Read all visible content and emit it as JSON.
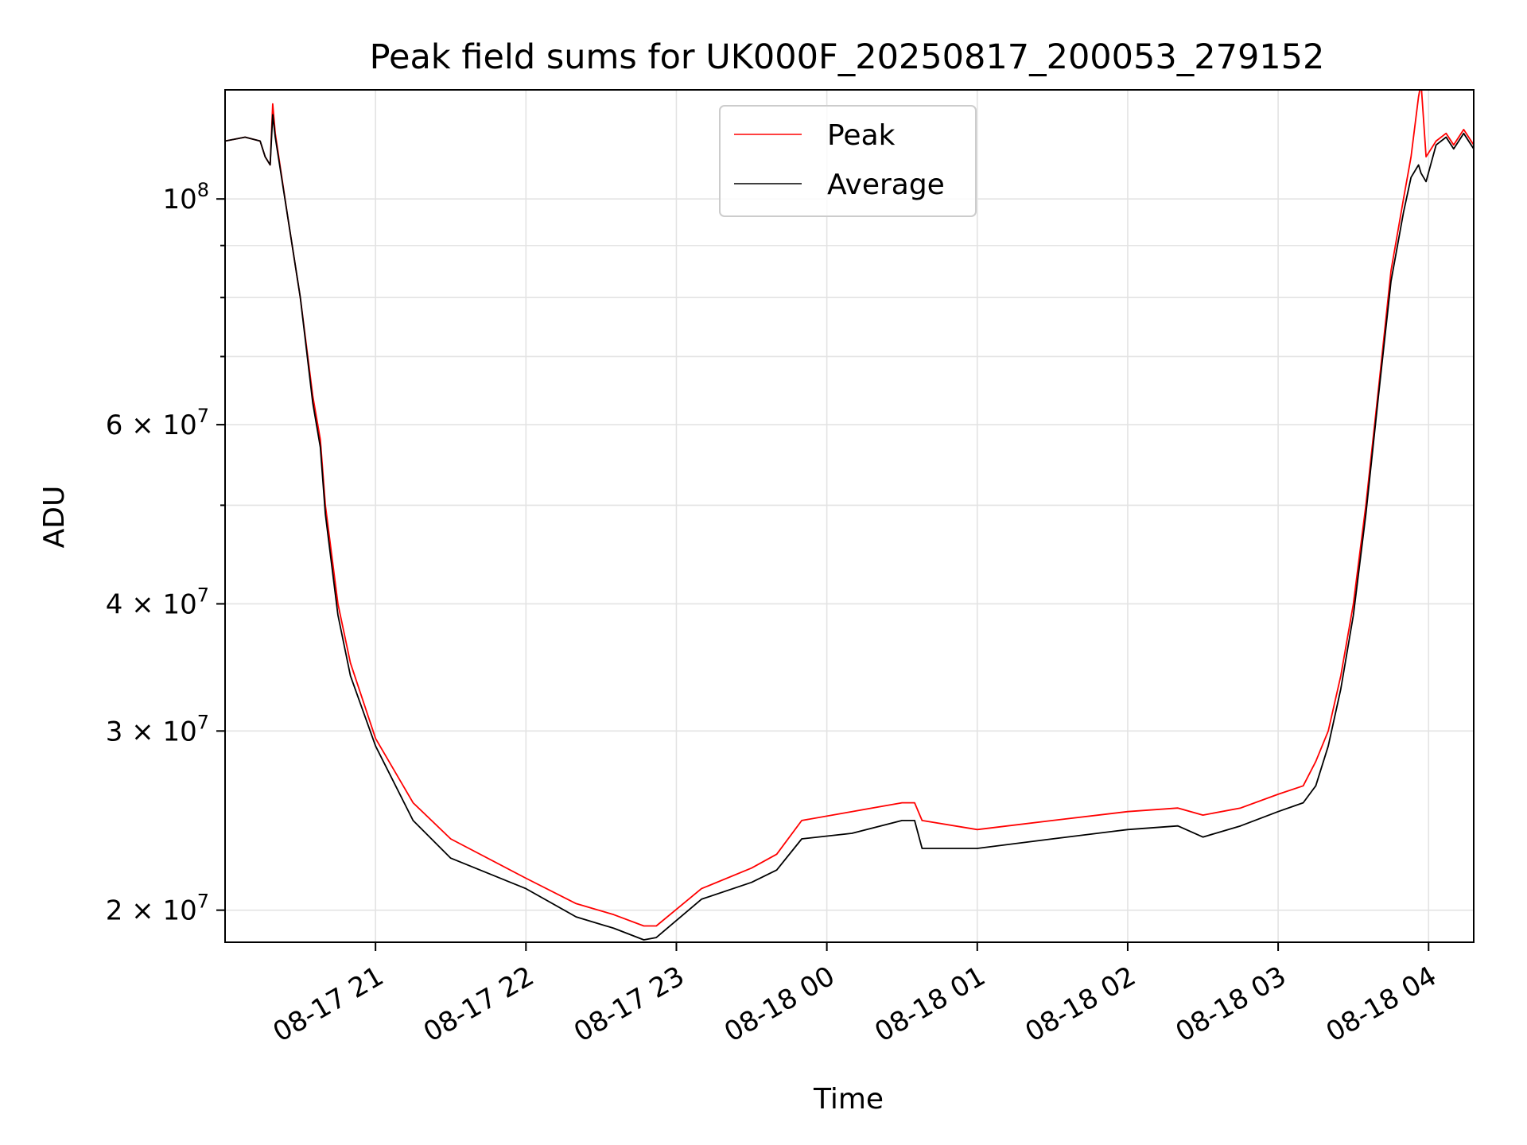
{
  "chart_data": {
    "type": "line",
    "title": "Peak field sums for UK000F_20250817_200053_279152",
    "xlabel": "Time",
    "ylabel": "ADU",
    "x_scale": "time",
    "y_scale": "log",
    "xlim": [
      "2025-08-17 20:00",
      "2025-08-18 04:18"
    ],
    "ylim": [
      18600000,
      128000000
    ],
    "grid": true,
    "legend": {
      "placement": "upper center",
      "entries": [
        "Peak",
        "Average"
      ]
    },
    "x_ticks": [
      "2025-08-17 21:00",
      "2025-08-17 22:00",
      "2025-08-17 23:00",
      "2025-08-18 00:00",
      "2025-08-18 01:00",
      "2025-08-18 02:00",
      "2025-08-18 03:00",
      "2025-08-18 04:00"
    ],
    "x_tick_labels": [
      "08-17 21",
      "08-17 22",
      "08-17 23",
      "08-18 00",
      "08-18 01",
      "08-18 02",
      "08-18 03",
      "08-18 04"
    ],
    "y_ticks": [
      {
        "value": 20000000,
        "mantissa": "2",
        "exponent": "7"
      },
      {
        "value": 30000000,
        "mantissa": "3",
        "exponent": "7"
      },
      {
        "value": 40000000,
        "mantissa": "4",
        "exponent": "7"
      },
      {
        "value": 60000000,
        "mantissa": "6",
        "exponent": "7"
      },
      {
        "value": 100000000,
        "mantissa": "",
        "exponent": "8"
      }
    ],
    "y_minor_ticks": [
      50000000,
      70000000,
      80000000,
      90000000
    ],
    "series": [
      {
        "name": "Peak",
        "color": "#ff0000",
        "x": [
          "2025-08-17 20:00",
          "2025-08-17 20:08",
          "2025-08-17 20:14",
          "2025-08-17 20:16",
          "2025-08-17 20:18",
          "2025-08-17 20:19",
          "2025-08-17 20:20",
          "2025-08-17 20:25",
          "2025-08-17 20:30",
          "2025-08-17 20:35",
          "2025-08-17 20:38",
          "2025-08-17 20:40",
          "2025-08-17 20:45",
          "2025-08-17 20:50",
          "2025-08-17 21:00",
          "2025-08-17 21:15",
          "2025-08-17 21:30",
          "2025-08-17 22:00",
          "2025-08-17 22:20",
          "2025-08-17 22:35",
          "2025-08-17 22:47",
          "2025-08-17 22:52",
          "2025-08-17 23:10",
          "2025-08-17 23:30",
          "2025-08-17 23:40",
          "2025-08-17 23:50",
          "2025-08-18 00:10",
          "2025-08-18 00:30",
          "2025-08-18 00:35",
          "2025-08-18 00:38",
          "2025-08-18 01:00",
          "2025-08-18 01:30",
          "2025-08-18 02:00",
          "2025-08-18 02:20",
          "2025-08-18 02:30",
          "2025-08-18 02:45",
          "2025-08-18 03:00",
          "2025-08-18 03:10",
          "2025-08-18 03:15",
          "2025-08-18 03:20",
          "2025-08-18 03:25",
          "2025-08-18 03:30",
          "2025-08-18 03:35",
          "2025-08-18 03:40",
          "2025-08-18 03:45",
          "2025-08-18 03:50",
          "2025-08-18 03:53",
          "2025-08-18 03:56",
          "2025-08-18 03:57",
          "2025-08-18 03:59",
          "2025-08-18 04:03",
          "2025-08-18 04:07",
          "2025-08-18 04:10",
          "2025-08-18 04:14",
          "2025-08-18 04:18"
        ],
        "y": [
          114000000,
          115000000,
          114000000,
          110000000,
          108000000,
          124000000,
          116000000,
          96000000,
          80000000,
          64000000,
          58000000,
          50000000,
          40000000,
          35000000,
          29500000,
          25500000,
          23500000,
          21500000,
          20300000,
          19800000,
          19300000,
          19300000,
          21000000,
          22000000,
          22700000,
          24500000,
          25000000,
          25500000,
          25500000,
          24500000,
          24000000,
          24500000,
          25000000,
          25200000,
          24800000,
          25200000,
          26000000,
          26500000,
          28000000,
          30000000,
          34000000,
          40000000,
          50000000,
          65000000,
          85000000,
          100000000,
          110000000,
          126000000,
          130000000,
          110000000,
          114000000,
          116000000,
          113000000,
          117000000,
          113000000
        ]
      },
      {
        "name": "Average",
        "color": "#000000",
        "x": [
          "2025-08-17 20:00",
          "2025-08-17 20:08",
          "2025-08-17 20:14",
          "2025-08-17 20:16",
          "2025-08-17 20:18",
          "2025-08-17 20:19",
          "2025-08-17 20:20",
          "2025-08-17 20:25",
          "2025-08-17 20:30",
          "2025-08-17 20:35",
          "2025-08-17 20:38",
          "2025-08-17 20:40",
          "2025-08-17 20:45",
          "2025-08-17 20:50",
          "2025-08-17 21:00",
          "2025-08-17 21:15",
          "2025-08-17 21:30",
          "2025-08-17 22:00",
          "2025-08-17 22:20",
          "2025-08-17 22:35",
          "2025-08-17 22:47",
          "2025-08-17 22:52",
          "2025-08-17 23:10",
          "2025-08-17 23:30",
          "2025-08-17 23:40",
          "2025-08-17 23:50",
          "2025-08-18 00:10",
          "2025-08-18 00:30",
          "2025-08-18 00:35",
          "2025-08-18 00:38",
          "2025-08-18 01:00",
          "2025-08-18 01:30",
          "2025-08-18 02:00",
          "2025-08-18 02:20",
          "2025-08-18 02:30",
          "2025-08-18 02:45",
          "2025-08-18 03:00",
          "2025-08-18 03:10",
          "2025-08-18 03:15",
          "2025-08-18 03:20",
          "2025-08-18 03:25",
          "2025-08-18 03:30",
          "2025-08-18 03:35",
          "2025-08-18 03:40",
          "2025-08-18 03:45",
          "2025-08-18 03:50",
          "2025-08-18 03:53",
          "2025-08-18 03:56",
          "2025-08-18 03:57",
          "2025-08-18 03:59",
          "2025-08-18 04:03",
          "2025-08-18 04:07",
          "2025-08-18 04:10",
          "2025-08-18 04:14",
          "2025-08-18 04:18"
        ],
        "y": [
          114000000,
          115000000,
          114000000,
          110000000,
          108000000,
          121000000,
          115000000,
          96000000,
          80000000,
          63000000,
          57000000,
          49000000,
          39000000,
          34000000,
          29000000,
          24500000,
          22500000,
          21000000,
          19700000,
          19200000,
          18700000,
          18800000,
          20500000,
          21300000,
          21900000,
          23500000,
          23800000,
          24500000,
          24500000,
          23000000,
          23000000,
          23500000,
          24000000,
          24200000,
          23600000,
          24200000,
          25000000,
          25500000,
          26500000,
          29000000,
          33000000,
          39000000,
          49000000,
          64000000,
          83000000,
          97000000,
          105000000,
          108000000,
          106000000,
          104000000,
          113000000,
          115000000,
          112000000,
          116000000,
          112000000
        ]
      }
    ]
  }
}
